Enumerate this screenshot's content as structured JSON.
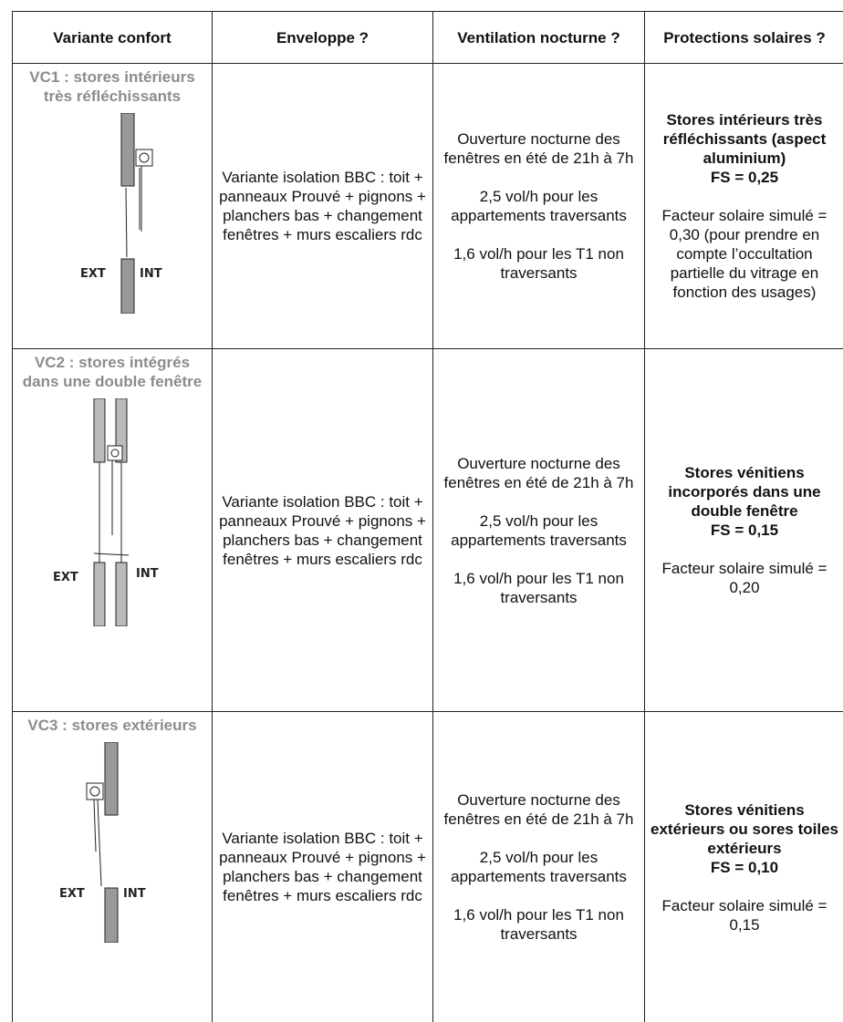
{
  "table": {
    "headers": [
      "Variante confort",
      "Enveloppe ?",
      "Ventilation nocturne ?",
      "Protections solaires ?"
    ],
    "rows": [
      {
        "variant": "VC1 : stores intérieurs très réfléchissants",
        "sketch_labels": [
          "EXT",
          "INT"
        ],
        "envelope": "Variante isolation BBC : toit + panneaux Prouvé + pignons + planchers bas + changement fenêtres + murs escaliers rdc",
        "ventilation": [
          "Ouverture nocturne des fenêtres en été de 21h à 7h",
          "2,5 vol/h pour les appartements traversants",
          "1,6 vol/h pour les T1 non traversants"
        ],
        "protection": {
          "title": "Stores intérieurs très réfléchissants (aspect aluminium)",
          "fs": "FS = 0,25",
          "simulated": "Facteur solaire simulé = 0,30",
          "note": "(pour prendre en compte l’occultation partielle du vitrage en fonction des usages)"
        }
      },
      {
        "variant": "VC2 : stores intégrés dans une double fenêtre",
        "sketch_labels": [
          "EXT",
          "INT"
        ],
        "envelope": "Variante isolation BBC : toit + panneaux Prouvé + pignons + planchers bas + changement fenêtres + murs escaliers rdc",
        "ventilation": [
          "Ouverture nocturne des fenêtres en été de 21h à 7h",
          "2,5 vol/h pour les appartements traversants",
          "1,6 vol/h pour les T1 non traversants"
        ],
        "protection": {
          "title": "Stores vénitiens incorporés dans une double fenêtre",
          "fs": "FS = 0,15",
          "simulated": "Facteur solaire simulé = 0,20"
        }
      },
      {
        "variant": "VC3 : stores extérieurs",
        "sketch_labels": [
          "EXT",
          "INT"
        ],
        "envelope": "Variante isolation BBC : toit + panneaux Prouvé + pignons + planchers bas + changement fenêtres + murs escaliers rdc",
        "ventilation": [
          "Ouverture nocturne des fenêtres en été de 21h à 7h",
          "2,5 vol/h pour les appartements traversants",
          "1,6 vol/h pour les T1 non traversants"
        ],
        "protection": {
          "title": "Stores vénitiens extérieurs ou sores toiles extérieurs",
          "fs": "FS = 0,10",
          "simulated": "Facteur solaire simulé = 0,15"
        }
      }
    ]
  }
}
